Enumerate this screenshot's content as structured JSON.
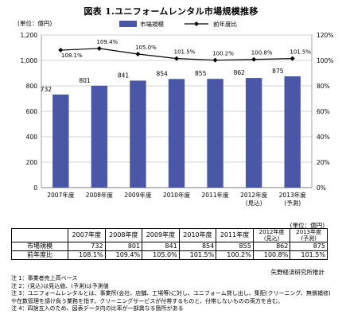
{
  "title": "図表 1.ユニフォームレンタル市場規模推移",
  "chart_data": {
    "type": "bar",
    "categories": [
      "2007年度",
      "2008年度",
      "2009年度",
      "2010年度",
      "2011年度",
      "2012年度",
      "2013年度"
    ],
    "category_sublabels": [
      "",
      "",
      "",
      "",
      "",
      "(見込)",
      "(予測)"
    ],
    "series": [
      {
        "name": "市場規模",
        "type": "bar",
        "axis": "left",
        "values": [
          732,
          801,
          841,
          854,
          855,
          862,
          875
        ]
      },
      {
        "name": "前年度比",
        "type": "line",
        "axis": "right",
        "values": [
          108.1,
          109.4,
          105.0,
          101.5,
          100.2,
          100.8,
          101.5
        ]
      }
    ],
    "value_labels": [
      "732",
      "801",
      "841",
      "854",
      "855",
      "862",
      "875"
    ],
    "ratio_labels": [
      "108.1%",
      "109.4%",
      "105.0%",
      "101.5%",
      "100.2%",
      "100.8%",
      "101.5%"
    ],
    "left_axis": {
      "label": "(単位：億円)",
      "ylim": [
        0,
        1200
      ],
      "ticks": [
        "0",
        "200",
        "400",
        "600",
        "800",
        "1,000",
        "1,200"
      ]
    },
    "right_axis": {
      "ylim": [
        0,
        120
      ],
      "ticks": [
        "0%",
        "20%",
        "40%",
        "60%",
        "80%",
        "100%",
        "120%"
      ]
    },
    "legend_position": "top-center",
    "grid": true,
    "colors": {
      "bar": "#4a56a6",
      "line": "#000000",
      "grid": "#c8c8c8"
    }
  },
  "table": {
    "unit": "(単位：億円)",
    "headers": [
      "2007年度",
      "2008年度",
      "2009年度",
      "2010年度",
      "2011年度",
      "2012年度",
      "2013年度"
    ],
    "header_subs": [
      "",
      "",
      "",
      "",
      "",
      "(見込)",
      "(予測)"
    ],
    "rows": [
      {
        "label": "市場規模",
        "values": [
          "732",
          "801",
          "841",
          "854",
          "855",
          "862",
          "875"
        ]
      },
      {
        "label": "前年度比",
        "values": [
          "108.1%",
          "109.4%",
          "105.0%",
          "101.5%",
          "100.2%",
          "100.8%",
          "101.5%"
        ]
      }
    ]
  },
  "source": "矢野経済研究所推計",
  "notes": [
    "注 1：事業者売上高ベース",
    "注 2：(見込)は見込値、(予測)は予測値",
    "注 3：ユニフォームレンタルとは、事業所(会社、店舗、工場等)に対し、ユニフォーム貸し出し、集配(クリーニング、無償補修)や在数管理を請け負う業務を指す。クリーニングサービスが付帯するものと、付帯しないものの両方を含む。",
    "注 4：四捨五入のため、図表データ内の比率が一部異なる箇所がある"
  ]
}
